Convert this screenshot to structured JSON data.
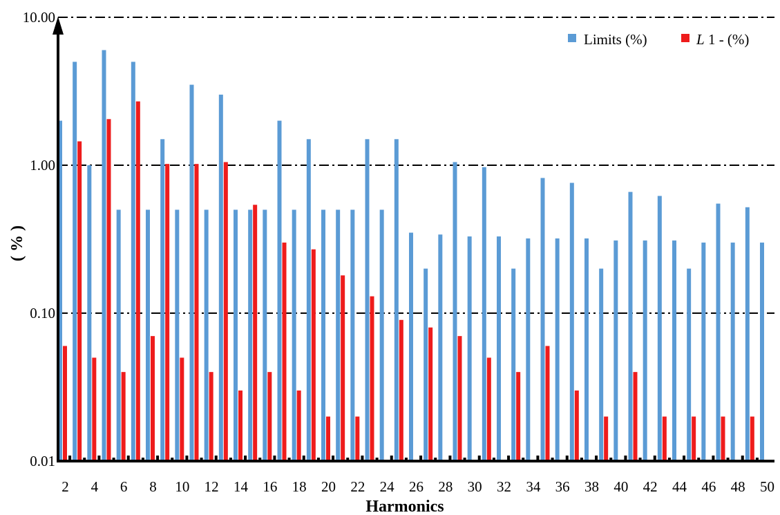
{
  "chart_data": {
    "type": "bar",
    "xlabel": "Harmonics",
    "ylabel": "( % )",
    "yscale": "log",
    "ylim": [
      0.01,
      10
    ],
    "yticks": [
      "0.01",
      "0.10",
      "1.00",
      "10.00"
    ],
    "ytick_values": [
      0.01,
      0.1,
      1,
      10
    ],
    "grid": "horizontal dash-dot",
    "legend_position": "top-right",
    "categories": [
      2,
      3,
      4,
      5,
      6,
      7,
      8,
      9,
      10,
      11,
      12,
      13,
      14,
      15,
      16,
      17,
      18,
      19,
      20,
      21,
      22,
      23,
      24,
      25,
      26,
      27,
      28,
      29,
      30,
      31,
      32,
      33,
      34,
      35,
      36,
      37,
      38,
      39,
      40,
      41,
      42,
      43,
      44,
      45,
      46,
      47,
      48,
      49,
      50
    ],
    "xtick_labels": [
      "2",
      "4",
      "6",
      "8",
      "10",
      "12",
      "14",
      "16",
      "18",
      "20",
      "22",
      "24",
      "26",
      "28",
      "30",
      "32",
      "34",
      "36",
      "38",
      "40",
      "42",
      "44",
      "46",
      "48",
      "50"
    ],
    "series": [
      {
        "name": "Limits (%)",
        "color": "#5b9bd5",
        "values": [
          2,
          5,
          1,
          6,
          0.5,
          5,
          0.5,
          1.5,
          0.5,
          3.5,
          0.5,
          3,
          0.5,
          0.5,
          0.5,
          2,
          0.5,
          1.5,
          0.5,
          0.5,
          0.5,
          1.5,
          0.5,
          1.5,
          0.35,
          0.2,
          0.34,
          1.05,
          0.33,
          0.97,
          0.33,
          0.2,
          0.32,
          0.82,
          0.32,
          0.76,
          0.32,
          0.2,
          0.31,
          0.66,
          0.31,
          0.62,
          0.31,
          0.2,
          0.3,
          0.55,
          0.3,
          0.52,
          0.3
        ]
      },
      {
        "name": "L 1 - (%)",
        "color": "#ee1c1c",
        "values": [
          0.06,
          1.45,
          0.05,
          2.05,
          0.04,
          2.7,
          0.07,
          1.02,
          0.05,
          1.02,
          0.04,
          1.05,
          0.03,
          0.54,
          0.04,
          0.3,
          0.03,
          0.27,
          0.02,
          0.18,
          0.02,
          0.13,
          null,
          0.09,
          null,
          0.08,
          null,
          0.07,
          null,
          0.05,
          null,
          0.04,
          null,
          0.06,
          null,
          0.03,
          null,
          0.02,
          null,
          0.04,
          null,
          0.02,
          null,
          0.02,
          null,
          0.02,
          null,
          0.02,
          null
        ]
      }
    ]
  },
  "legend": {
    "items": [
      {
        "label_prefix": "Limits (%)",
        "label_italic": "",
        "label_suffix": ""
      },
      {
        "label_prefix": "",
        "label_italic": "L",
        "label_suffix": " 1 - (%)"
      }
    ]
  }
}
